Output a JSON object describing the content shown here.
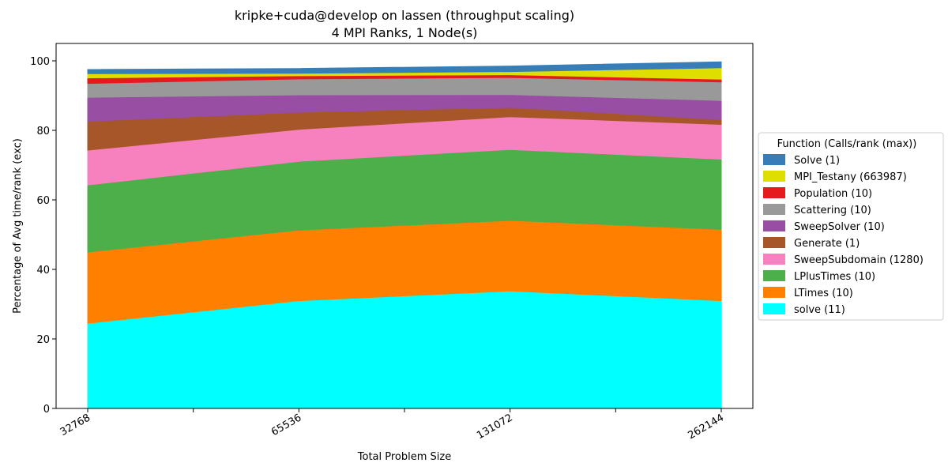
{
  "chart_data": {
    "type": "area",
    "stacked": true,
    "title": "kripke+cuda@develop on lassen (throughput scaling)",
    "subtitle": "4 MPI Ranks, 1 Node(s)",
    "xlabel": "Total Problem Size",
    "ylabel": "Percentage of Avg time/rank (exc)",
    "x": [
      32768,
      65536,
      131072,
      262144
    ],
    "x_tick_labels": [
      "32768",
      "65536",
      "131072",
      "262144"
    ],
    "ylim": [
      0,
      105
    ],
    "y_ticks": [
      0,
      20,
      40,
      60,
      80,
      100
    ],
    "grid": false,
    "legend_title": "Function (Calls/rank (max))",
    "legend_position": "right",
    "series": [
      {
        "name": "solve (11)",
        "color": "#00ffff",
        "values": [
          24.5,
          31.0,
          33.8,
          31.0
        ]
      },
      {
        "name": "LTimes (10)",
        "color": "#ff7f00",
        "values": [
          20.5,
          20.3,
          20.3,
          20.5
        ]
      },
      {
        "name": "LPlusTimes (10)",
        "color": "#4daf4a",
        "values": [
          19.3,
          19.8,
          20.4,
          20.2
        ]
      },
      {
        "name": "SweepSubdomain (1280)",
        "color": "#f781bf",
        "values": [
          10.0,
          9.2,
          9.4,
          10.0
        ]
      },
      {
        "name": "Generate (1)",
        "color": "#a65628",
        "values": [
          8.3,
          4.9,
          2.7,
          1.4
        ]
      },
      {
        "name": "SweepSolver (10)",
        "color": "#984ea3",
        "values": [
          6.9,
          5.0,
          3.7,
          5.5
        ]
      },
      {
        "name": "Scattering (10)",
        "color": "#999999",
        "values": [
          4.0,
          4.6,
          4.9,
          5.3
        ]
      },
      {
        "name": "Population (10)",
        "color": "#e41a1c",
        "values": [
          1.6,
          0.9,
          0.8,
          0.8
        ]
      },
      {
        "name": "MPI_Testany (663987)",
        "color": "#dede00",
        "values": [
          1.2,
          0.7,
          0.9,
          3.3
        ]
      },
      {
        "name": "Solve (1)",
        "color": "#377eb8",
        "values": [
          1.2,
          1.4,
          1.6,
          1.7
        ]
      }
    ]
  }
}
